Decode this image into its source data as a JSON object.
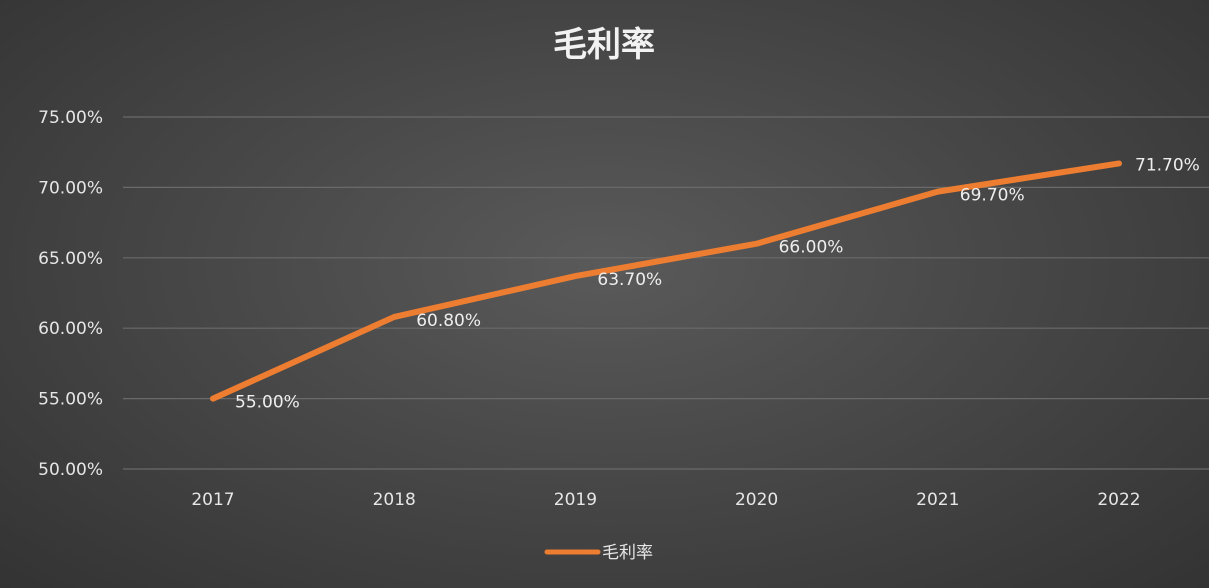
{
  "chart_data": {
    "type": "line",
    "title": "毛利率",
    "categories": [
      "2017",
      "2018",
      "2019",
      "2020",
      "2021",
      "2022"
    ],
    "series": [
      {
        "name": "毛利率",
        "values": [
          55.0,
          60.8,
          63.7,
          66.0,
          69.7,
          71.7
        ],
        "labels": [
          "55.00%",
          "60.80%",
          "63.70%",
          "66.00%",
          "69.70%",
          "71.70%"
        ],
        "color": "#ed7d31"
      }
    ],
    "ylim": [
      50,
      75
    ],
    "yticks": [
      "50.00%",
      "55.00%",
      "60.00%",
      "65.00%",
      "70.00%",
      "75.00%"
    ],
    "ytick_values": [
      50,
      55,
      60,
      65,
      70,
      75
    ],
    "grid": true,
    "legend_position": "bottom"
  },
  "colors": {
    "series": "#ed7d31",
    "grid": "#6a6a6a"
  }
}
